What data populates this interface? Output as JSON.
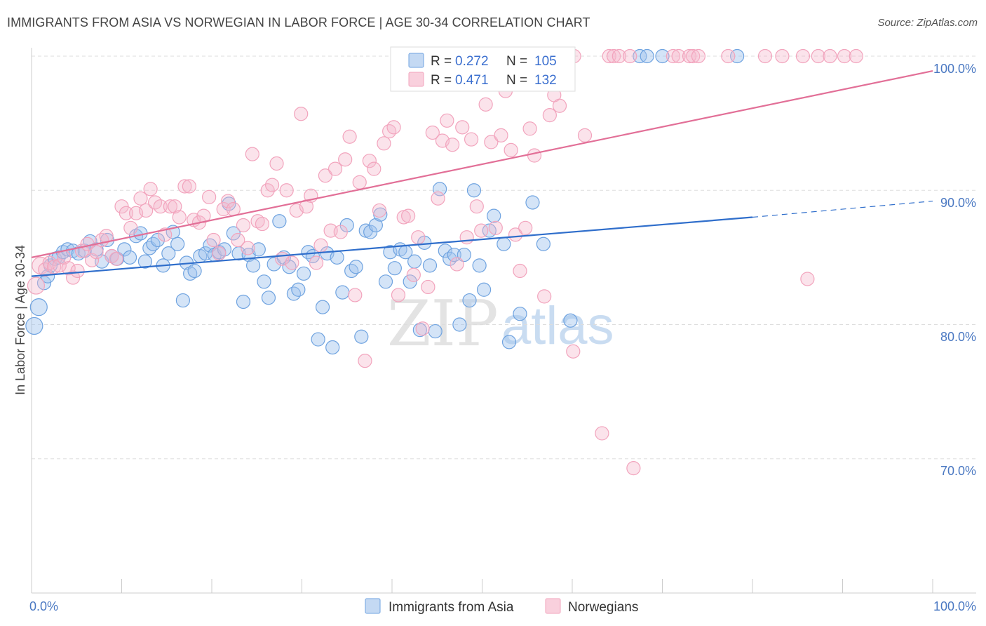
{
  "title": "IMMIGRANTS FROM ASIA VS NORWEGIAN IN LABOR FORCE | AGE 30-34 CORRELATION CHART",
  "source": "Source: ZipAtlas.com",
  "watermark": {
    "zip": "ZIP",
    "atlas": "atlas"
  },
  "legend": {
    "r_label": "R =",
    "n_label": "N =",
    "series": [
      {
        "name": "Immigrants from Asia",
        "r": "0.272",
        "n": "105",
        "color": "#6fa3e0"
      },
      {
        "name": "Norwegians",
        "r": "0.471",
        "n": "132",
        "color": "#f2a4bd"
      }
    ]
  },
  "chart_data": {
    "type": "scatter",
    "title": "IMMIGRANTS FROM ASIA VS NORWEGIAN IN LABOR FORCE | AGE 30-34 CORRELATION CHART",
    "xlabel": "",
    "ylabel": "In Labor Force | Age 30-34",
    "xlim": [
      0,
      100
    ],
    "ylim": [
      60,
      100
    ],
    "x_tick_labels": [
      "0.0%",
      "100.0%"
    ],
    "y_ticks": [
      70,
      80,
      90,
      100
    ],
    "y_tick_labels": [
      "70.0%",
      "80.0%",
      "90.0%",
      "100.0%"
    ],
    "grid": true,
    "series": [
      {
        "name": "Immigrants from Asia",
        "color": "#6fa3e0",
        "line_color": "#2f6ecb",
        "trend": {
          "x0": 0,
          "y0": 83.6,
          "x1": 80,
          "y1": 88.0,
          "dashed_to_x": 100,
          "dashed_to_y": 89.2
        },
        "points": [
          [
            0.3,
            79.9
          ],
          [
            0.8,
            81.3
          ],
          [
            1.4,
            83.1
          ],
          [
            1.8,
            83.6
          ],
          [
            2.1,
            84.4
          ],
          [
            2.6,
            84.9
          ],
          [
            3.0,
            85.0
          ],
          [
            3.5,
            85.4
          ],
          [
            4.0,
            85.6
          ],
          [
            4.6,
            85.5
          ],
          [
            5.2,
            85.3
          ],
          [
            5.9,
            85.5
          ],
          [
            6.5,
            86.2
          ],
          [
            7.2,
            85.6
          ],
          [
            7.8,
            84.7
          ],
          [
            8.4,
            86.3
          ],
          [
            8.9,
            85.1
          ],
          [
            9.5,
            84.9
          ],
          [
            10.3,
            85.6
          ],
          [
            10.9,
            85.0
          ],
          [
            11.6,
            86.6
          ],
          [
            12.1,
            86.8
          ],
          [
            12.6,
            84.7
          ],
          [
            13.1,
            85.7
          ],
          [
            13.5,
            86.0
          ],
          [
            14.0,
            86.3
          ],
          [
            14.6,
            84.4
          ],
          [
            15.2,
            85.3
          ],
          [
            15.7,
            86.9
          ],
          [
            16.2,
            86.0
          ],
          [
            16.8,
            81.8
          ],
          [
            17.2,
            84.6
          ],
          [
            17.6,
            83.8
          ],
          [
            18.1,
            84.0
          ],
          [
            18.7,
            85.1
          ],
          [
            19.3,
            85.3
          ],
          [
            19.8,
            85.9
          ],
          [
            20.3,
            85.2
          ],
          [
            20.8,
            85.4
          ],
          [
            21.4,
            85.6
          ],
          [
            21.9,
            89.0
          ],
          [
            22.4,
            86.8
          ],
          [
            23.0,
            85.3
          ],
          [
            23.5,
            81.7
          ],
          [
            24.1,
            85.2
          ],
          [
            24.6,
            84.4
          ],
          [
            25.2,
            85.6
          ],
          [
            25.8,
            83.2
          ],
          [
            26.3,
            82.0
          ],
          [
            26.9,
            84.5
          ],
          [
            27.5,
            87.7
          ],
          [
            28.0,
            85.0
          ],
          [
            28.6,
            84.3
          ],
          [
            29.1,
            82.3
          ],
          [
            29.6,
            82.6
          ],
          [
            30.2,
            83.8
          ],
          [
            30.7,
            85.4
          ],
          [
            31.2,
            85.1
          ],
          [
            31.8,
            78.9
          ],
          [
            32.3,
            81.3
          ],
          [
            32.8,
            85.3
          ],
          [
            33.4,
            78.3
          ],
          [
            33.9,
            85.0
          ],
          [
            34.5,
            82.4
          ],
          [
            35.0,
            87.4
          ],
          [
            35.5,
            84.0
          ],
          [
            36.0,
            84.3
          ],
          [
            36.6,
            79.1
          ],
          [
            37.1,
            87.0
          ],
          [
            37.6,
            86.9
          ],
          [
            38.2,
            87.4
          ],
          [
            38.7,
            88.2
          ],
          [
            39.3,
            83.2
          ],
          [
            39.8,
            85.4
          ],
          [
            40.3,
            84.2
          ],
          [
            40.9,
            85.6
          ],
          [
            41.5,
            85.4
          ],
          [
            42.0,
            83.2
          ],
          [
            42.5,
            84.7
          ],
          [
            43.1,
            79.6
          ],
          [
            43.6,
            86.1
          ],
          [
            44.2,
            84.4
          ],
          [
            44.8,
            79.5
          ],
          [
            45.3,
            90.1
          ],
          [
            45.9,
            85.5
          ],
          [
            46.4,
            84.9
          ],
          [
            46.9,
            85.2
          ],
          [
            47.5,
            80.0
          ],
          [
            48.0,
            85.2
          ],
          [
            48.6,
            81.8
          ],
          [
            49.1,
            90.0
          ],
          [
            49.7,
            84.4
          ],
          [
            50.2,
            82.6
          ],
          [
            50.8,
            87.0
          ],
          [
            51.3,
            88.1
          ],
          [
            52.4,
            86.0
          ],
          [
            53.0,
            78.7
          ],
          [
            54.2,
            80.8
          ],
          [
            55.6,
            89.1
          ],
          [
            56.8,
            86.0
          ],
          [
            59.8,
            80.3
          ],
          [
            67.5,
            100.0
          ],
          [
            68.3,
            100.0
          ],
          [
            78.3,
            100.0
          ],
          [
            70.0,
            100.0
          ]
        ]
      },
      {
        "name": "Norwegians",
        "color": "#f2a4bd",
        "line_color": "#e26f97",
        "trend": {
          "x0": 0,
          "y0": 85.0,
          "x1": 100,
          "y1": 98.9
        },
        "points": [
          [
            0.5,
            82.9
          ],
          [
            1.0,
            84.4
          ],
          [
            1.5,
            84.1
          ],
          [
            2.0,
            84.6
          ],
          [
            2.5,
            84.3
          ],
          [
            3.1,
            84.4
          ],
          [
            3.6,
            85.0
          ],
          [
            4.1,
            84.2
          ],
          [
            4.6,
            83.5
          ],
          [
            5.1,
            84.0
          ],
          [
            5.6,
            85.5
          ],
          [
            6.2,
            86.0
          ],
          [
            6.7,
            84.8
          ],
          [
            7.2,
            85.4
          ],
          [
            7.8,
            86.3
          ],
          [
            8.3,
            86.6
          ],
          [
            8.9,
            85.1
          ],
          [
            9.4,
            84.9
          ],
          [
            10.0,
            88.8
          ],
          [
            10.5,
            88.3
          ],
          [
            11.0,
            87.2
          ],
          [
            11.6,
            88.3
          ],
          [
            12.1,
            89.4
          ],
          [
            12.7,
            88.5
          ],
          [
            13.2,
            90.1
          ],
          [
            13.7,
            89.1
          ],
          [
            14.3,
            88.8
          ],
          [
            14.8,
            86.7
          ],
          [
            15.4,
            88.8
          ],
          [
            15.9,
            88.8
          ],
          [
            16.4,
            88.0
          ],
          [
            17.0,
            90.3
          ],
          [
            17.5,
            90.3
          ],
          [
            18.0,
            87.8
          ],
          [
            18.6,
            87.6
          ],
          [
            19.1,
            88.1
          ],
          [
            19.7,
            89.5
          ],
          [
            20.2,
            86.3
          ],
          [
            20.8,
            85.3
          ],
          [
            21.3,
            88.6
          ],
          [
            21.8,
            89.2
          ],
          [
            22.4,
            88.6
          ],
          [
            22.9,
            86.3
          ],
          [
            23.5,
            87.4
          ],
          [
            24.0,
            85.7
          ],
          [
            24.5,
            92.7
          ],
          [
            25.1,
            87.7
          ],
          [
            25.6,
            87.5
          ],
          [
            26.2,
            90.0
          ],
          [
            26.7,
            90.4
          ],
          [
            27.2,
            92.0
          ],
          [
            27.8,
            84.9
          ],
          [
            28.3,
            90.0
          ],
          [
            28.9,
            84.6
          ],
          [
            29.4,
            88.5
          ],
          [
            29.9,
            95.7
          ],
          [
            30.5,
            88.8
          ],
          [
            31.0,
            89.6
          ],
          [
            31.6,
            84.6
          ],
          [
            32.1,
            85.9
          ],
          [
            32.6,
            91.1
          ],
          [
            33.2,
            87.0
          ],
          [
            33.7,
            91.6
          ],
          [
            34.3,
            86.9
          ],
          [
            34.8,
            92.3
          ],
          [
            35.3,
            94.0
          ],
          [
            35.9,
            82.2
          ],
          [
            36.4,
            90.6
          ],
          [
            37.0,
            77.3
          ],
          [
            37.5,
            92.2
          ],
          [
            38.0,
            91.6
          ],
          [
            38.6,
            88.5
          ],
          [
            39.1,
            93.5
          ],
          [
            39.7,
            94.4
          ],
          [
            40.2,
            94.7
          ],
          [
            40.7,
            82.2
          ],
          [
            41.3,
            88.0
          ],
          [
            41.8,
            88.1
          ],
          [
            42.4,
            83.7
          ],
          [
            42.9,
            86.5
          ],
          [
            43.4,
            79.7
          ],
          [
            44.0,
            82.8
          ],
          [
            44.5,
            94.3
          ],
          [
            45.1,
            89.4
          ],
          [
            45.6,
            93.7
          ],
          [
            46.1,
            95.2
          ],
          [
            46.7,
            93.4
          ],
          [
            47.2,
            84.5
          ],
          [
            47.8,
            94.7
          ],
          [
            48.3,
            86.5
          ],
          [
            48.8,
            93.8
          ],
          [
            49.4,
            88.8
          ],
          [
            49.9,
            87.0
          ],
          [
            50.4,
            96.4
          ],
          [
            51.0,
            93.6
          ],
          [
            51.5,
            87.2
          ],
          [
            52.1,
            94.1
          ],
          [
            52.6,
            97.4
          ],
          [
            53.2,
            93.0
          ],
          [
            53.7,
            86.7
          ],
          [
            54.2,
            84.0
          ],
          [
            54.8,
            87.2
          ],
          [
            55.3,
            94.6
          ],
          [
            55.8,
            92.6
          ],
          [
            56.4,
            99.3
          ],
          [
            56.9,
            82.1
          ],
          [
            57.5,
            95.6
          ],
          [
            58.0,
            97.1
          ],
          [
            58.6,
            96.3
          ],
          [
            60.2,
            100.0
          ],
          [
            60.1,
            78.0
          ],
          [
            61.4,
            94.1
          ],
          [
            63.3,
            71.9
          ],
          [
            64.1,
            100.0
          ],
          [
            64.6,
            100.0
          ],
          [
            65.2,
            100.0
          ],
          [
            66.8,
            69.3
          ],
          [
            66.4,
            100.0
          ],
          [
            71.2,
            100.0
          ],
          [
            71.8,
            100.0
          ],
          [
            73.0,
            100.0
          ],
          [
            73.4,
            100.0
          ],
          [
            74.0,
            100.0
          ],
          [
            77.3,
            100.0
          ],
          [
            81.4,
            100.0
          ],
          [
            83.3,
            100.0
          ],
          [
            85.6,
            100.0
          ],
          [
            86.1,
            83.4
          ],
          [
            87.3,
            100.0
          ],
          [
            88.6,
            100.0
          ],
          [
            90.2,
            100.0
          ],
          [
            91.5,
            100.0
          ]
        ]
      }
    ]
  }
}
